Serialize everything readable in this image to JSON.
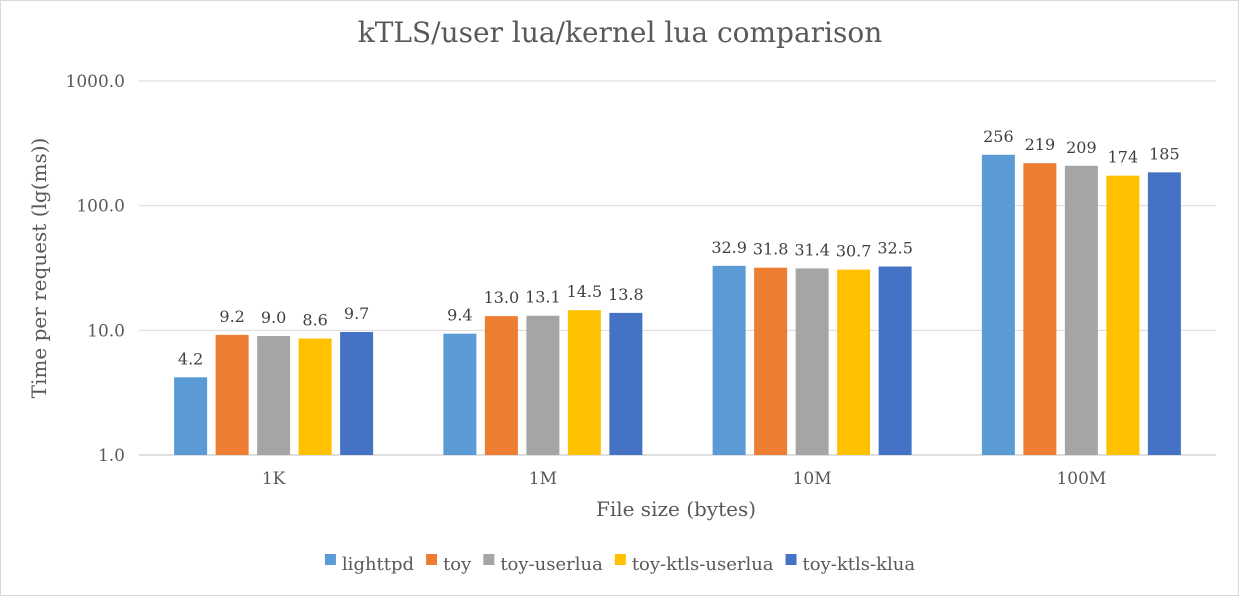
{
  "chart_data": {
    "type": "bar",
    "title": "kTLS/user lua/kernel lua comparison",
    "xlabel": "File size (bytes)",
    "ylabel": "Time per request (lg(ms))",
    "yscale": "log",
    "ylim": [
      1,
      1000
    ],
    "yticks": [
      1.0,
      10.0,
      100.0,
      1000.0
    ],
    "ytick_labels": [
      "1.0",
      "10.0",
      "100.0",
      "1000.0"
    ],
    "grid": true,
    "legend_position": "bottom",
    "categories": [
      "1K",
      "1M",
      "10M",
      "100M"
    ],
    "series": [
      {
        "name": "lighttpd",
        "color": "#5b9bd5",
        "values": [
          4.2,
          9.4,
          32.9,
          256
        ],
        "labels": [
          "4.2",
          "9.4",
          "32.9",
          "256"
        ]
      },
      {
        "name": "toy",
        "color": "#ed7d31",
        "values": [
          9.2,
          13.0,
          31.8,
          219
        ],
        "labels": [
          "9.2",
          "13.0",
          "31.8",
          "219"
        ]
      },
      {
        "name": "toy-userlua",
        "color": "#a5a5a5",
        "values": [
          9.0,
          13.1,
          31.4,
          209
        ],
        "labels": [
          "9.0",
          "13.1",
          "31.4",
          "209"
        ]
      },
      {
        "name": "toy-ktls-userlua",
        "color": "#ffc000",
        "values": [
          8.6,
          14.5,
          30.7,
          174
        ],
        "labels": [
          "8.6",
          "14.5",
          "30.7",
          "174"
        ]
      },
      {
        "name": "toy-ktls-klua",
        "color": "#4472c4",
        "values": [
          9.7,
          13.8,
          32.5,
          185
        ],
        "labels": [
          "9.7",
          "13.8",
          "32.5",
          "185"
        ]
      }
    ]
  }
}
